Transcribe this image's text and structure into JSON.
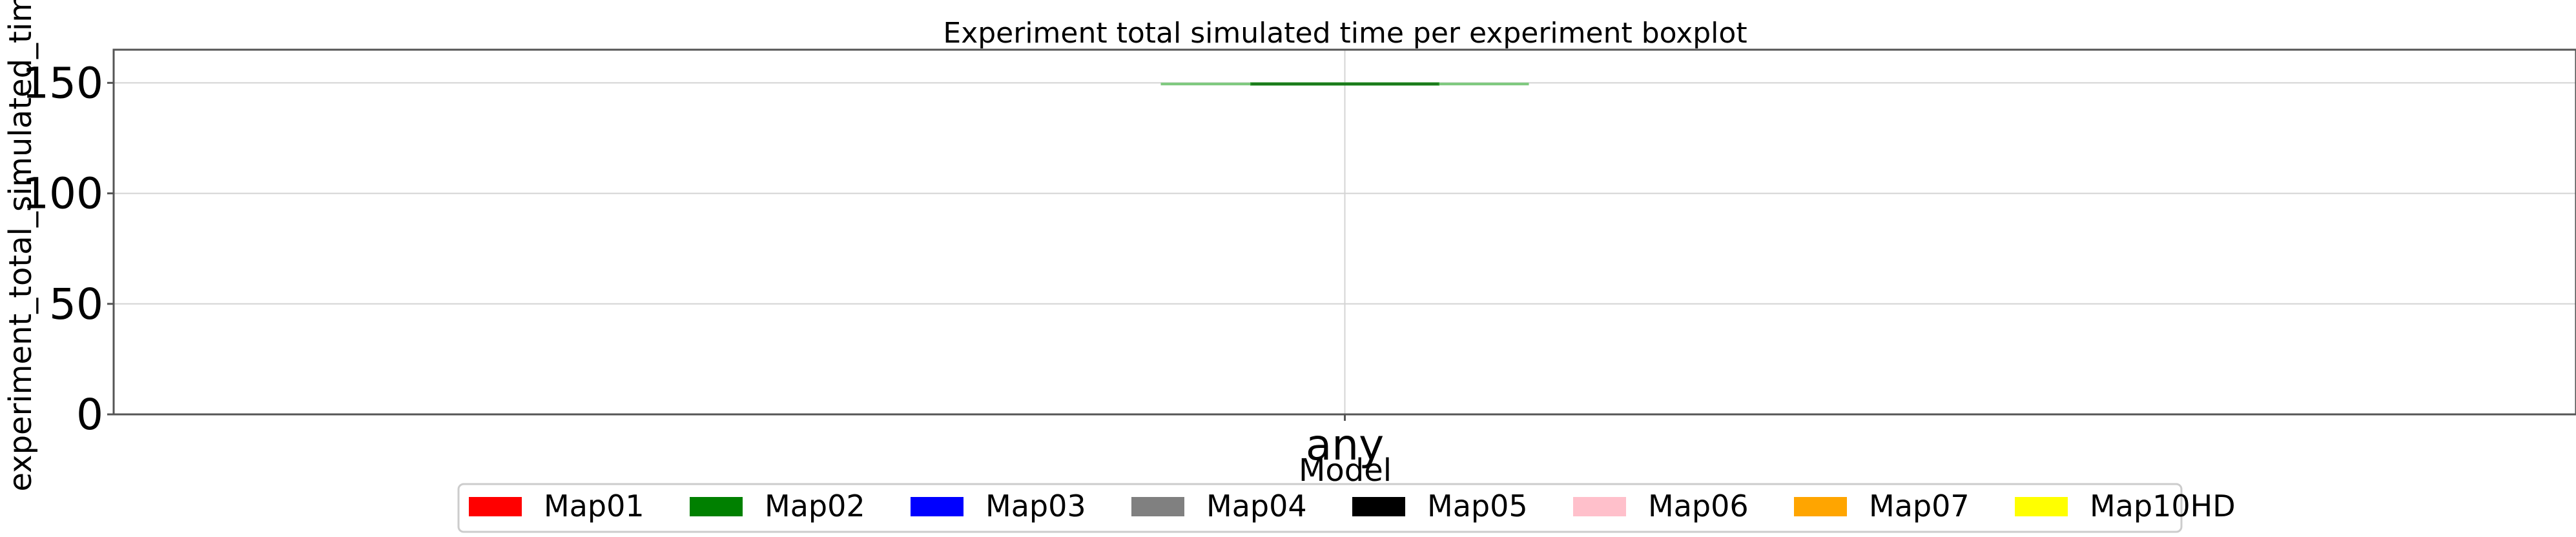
{
  "chart_data": {
    "type": "boxplot",
    "title": "Experiment total simulated time per experiment boxplot",
    "xlabel": "Model",
    "ylabel": "experiment_total_simulated_time",
    "categories": [
      "any"
    ],
    "ylim": [
      0,
      165
    ],
    "yticks": [
      0,
      50,
      100,
      150
    ],
    "grid": true,
    "legend_placement": "bottom-center",
    "boxes": [
      {
        "category": "any",
        "min": 149.5,
        "q1": 149.5,
        "median": 149.5,
        "q3": 149.5,
        "max": 149.5,
        "color": "#2ca02c"
      }
    ],
    "legend": [
      {
        "label": "Map01",
        "color": "#ff0000"
      },
      {
        "label": "Map02",
        "color": "#008000"
      },
      {
        "label": "Map03",
        "color": "#0000ff"
      },
      {
        "label": "Map04",
        "color": "#808080"
      },
      {
        "label": "Map05",
        "color": "#000000"
      },
      {
        "label": "Map06",
        "color": "#ffc0cb"
      },
      {
        "label": "Map07",
        "color": "#ffa500"
      },
      {
        "label": "Map10HD",
        "color": "#ffff00"
      }
    ]
  }
}
